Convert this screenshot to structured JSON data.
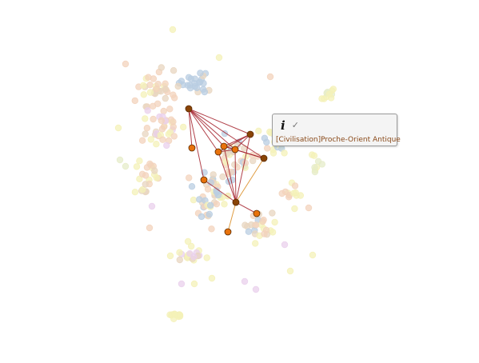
{
  "colors": {
    "background": "#ffffff",
    "node_yellow": "#f4f1b8",
    "node_peach": "#f3d3bc",
    "node_tan": "#e8d6c0",
    "node_blue": "#b9cde2",
    "node_pink": "#ead0ec",
    "node_green": "#e6ecc9",
    "highlight_node_orange": "#e8720c",
    "highlight_node_brown": "#8a4406",
    "edge_red": "#a3202a",
    "edge_orange": "#d98b21"
  },
  "tooltip": {
    "info_icon": "info-icon",
    "check_icon": "check-icon",
    "info_glyph": "i",
    "check_glyph": "✓",
    "label": "[Civilisation]Proche-Orient Antique"
  }
}
